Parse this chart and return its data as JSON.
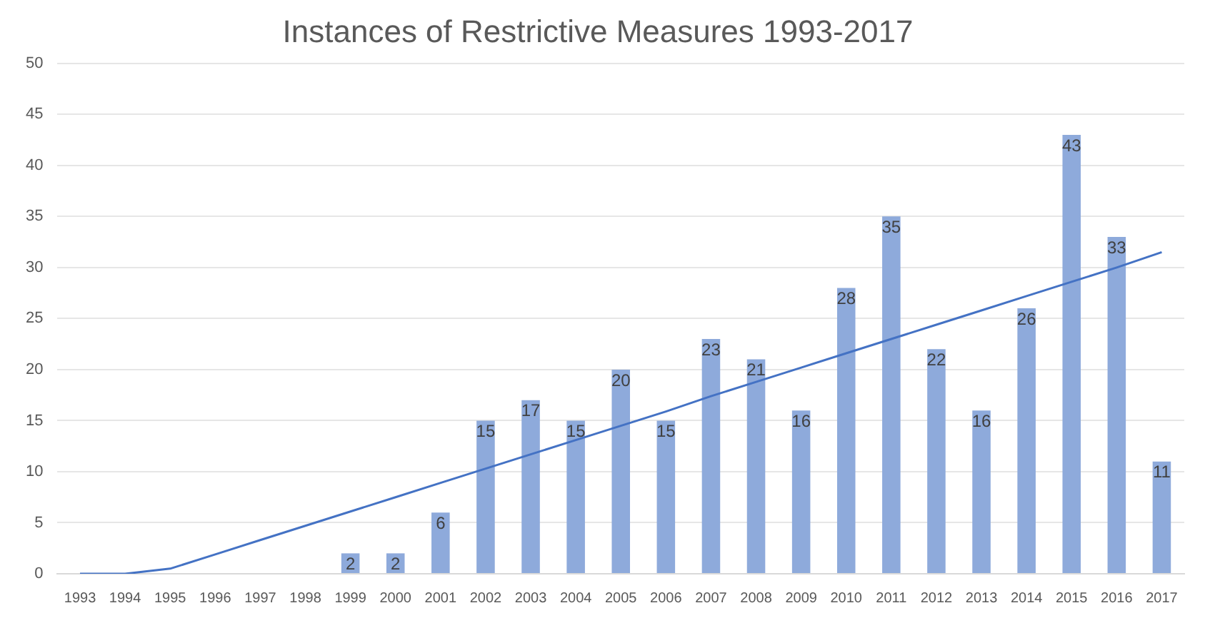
{
  "chart_data": {
    "type": "bar",
    "title": "Instances of Restrictive Measures 1993-2017",
    "categories": [
      "1993",
      "1994",
      "1995",
      "1996",
      "1997",
      "1998",
      "1999",
      "2000",
      "2001",
      "2002",
      "2003",
      "2004",
      "2005",
      "2006",
      "2007",
      "2008",
      "2009",
      "2010",
      "2011",
      "2012",
      "2013",
      "2014",
      "2015",
      "2016",
      "2017"
    ],
    "series": [
      {
        "color": "#8eaadb",
        "values": [
          0,
          0,
          0,
          0,
          0,
          0,
          2,
          2,
          6,
          15,
          17,
          15,
          20,
          15,
          23,
          21,
          16,
          28,
          35,
          22,
          16,
          26,
          43,
          33,
          11
        ],
        "value_labels": [
          null,
          null,
          null,
          null,
          null,
          null,
          "2",
          "2",
          "6",
          "15",
          "17",
          "15",
          "20",
          "15",
          "23",
          "21",
          "16",
          "28",
          "35",
          "22",
          "16",
          "26",
          "43",
          "33",
          "11"
        ]
      },
      {
        "type": "line",
        "color": "#4472c4",
        "values": [
          0,
          0,
          0.5,
          1.9,
          3.3,
          4.7,
          6.1,
          7.5,
          8.9,
          10.3,
          11.7,
          13.1,
          14.5,
          15.9,
          17.4,
          18.8,
          20.2,
          21.6,
          23,
          24.4,
          25.8,
          27.2,
          28.6,
          30,
          31.5
        ]
      }
    ],
    "ylim": [
      0,
      50
    ],
    "yticks": [
      0,
      5,
      10,
      15,
      20,
      25,
      30,
      35,
      40,
      45,
      50
    ],
    "grid": "y",
    "legend": false
  }
}
